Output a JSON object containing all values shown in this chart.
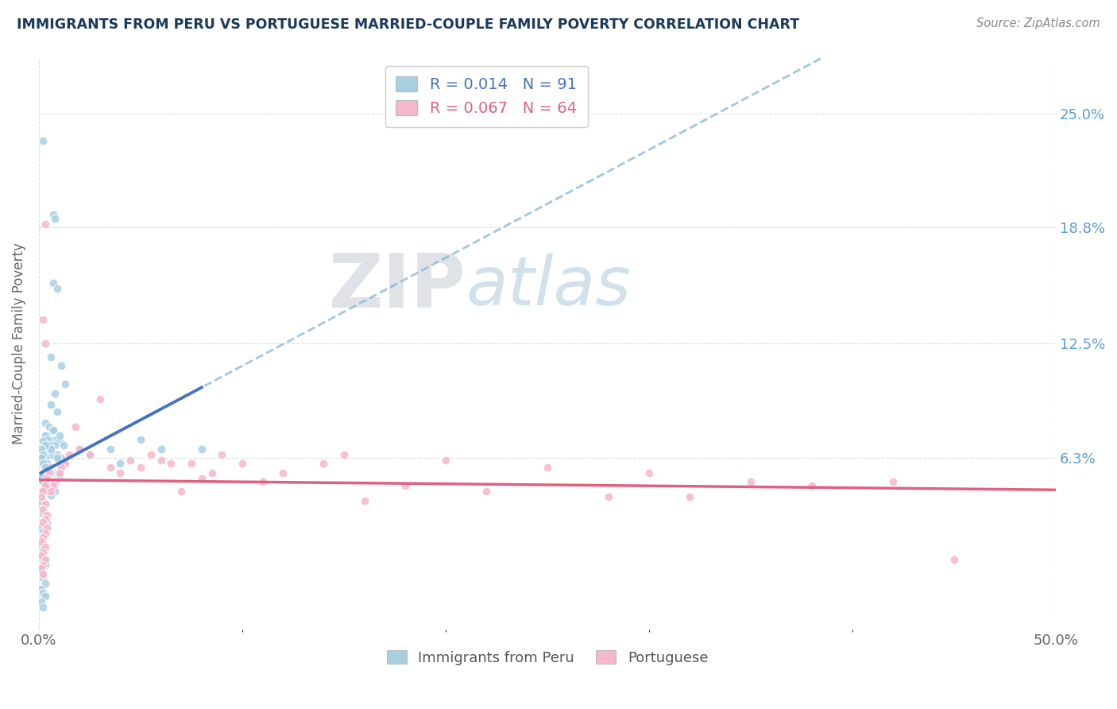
{
  "title": "IMMIGRANTS FROM PERU VS PORTUGUESE MARRIED-COUPLE FAMILY POVERTY CORRELATION CHART",
  "source_text": "Source: ZipAtlas.com",
  "ylabel": "Married-Couple Family Poverty",
  "ytick_labels": [
    "25.0%",
    "18.8%",
    "12.5%",
    "6.3%"
  ],
  "ytick_values": [
    0.25,
    0.188,
    0.125,
    0.063
  ],
  "xmin": 0.0,
  "xmax": 0.5,
  "ymin": -0.03,
  "ymax": 0.28,
  "series1_label": "Immigrants from Peru",
  "series2_label": "Portuguese",
  "series1_color": "#a8cfe0",
  "series2_color": "#f5b8cb",
  "series1_line_color": "#4472c4",
  "series2_line_color": "#e06080",
  "series2_dashed_color": "#7aaed6",
  "R1": 0.014,
  "N1": 91,
  "R2": 0.067,
  "N2": 64,
  "watermark_zip": "ZIP",
  "watermark_atlas": "atlas",
  "watermark_zip_color": "#c8d4dc",
  "watermark_atlas_color": "#a8c4d8",
  "background_color": "#ffffff",
  "grid_color": "#dddddd",
  "title_color": "#1a3a5c",
  "series1_scatter": [
    [
      0.002,
      0.235
    ],
    [
      0.007,
      0.195
    ],
    [
      0.008,
      0.193
    ],
    [
      0.007,
      0.158
    ],
    [
      0.009,
      0.155
    ],
    [
      0.006,
      0.118
    ],
    [
      0.011,
      0.113
    ],
    [
      0.013,
      0.103
    ],
    [
      0.008,
      0.098
    ],
    [
      0.006,
      0.092
    ],
    [
      0.009,
      0.088
    ],
    [
      0.003,
      0.082
    ],
    [
      0.005,
      0.08
    ],
    [
      0.007,
      0.078
    ],
    [
      0.004,
      0.075
    ],
    [
      0.008,
      0.073
    ],
    [
      0.01,
      0.072
    ],
    [
      0.012,
      0.07
    ],
    [
      0.006,
      0.068
    ],
    [
      0.009,
      0.065
    ],
    [
      0.011,
      0.063
    ],
    [
      0.007,
      0.078
    ],
    [
      0.01,
      0.075
    ],
    [
      0.005,
      0.073
    ],
    [
      0.008,
      0.07
    ],
    [
      0.003,
      0.068
    ],
    [
      0.006,
      0.065
    ],
    [
      0.009,
      0.063
    ],
    [
      0.012,
      0.06
    ],
    [
      0.004,
      0.058
    ],
    [
      0.007,
      0.055
    ],
    [
      0.01,
      0.053
    ],
    [
      0.002,
      0.05
    ],
    [
      0.005,
      0.048
    ],
    [
      0.008,
      0.045
    ],
    [
      0.003,
      0.075
    ],
    [
      0.004,
      0.073
    ],
    [
      0.005,
      0.07
    ],
    [
      0.006,
      0.068
    ],
    [
      0.002,
      0.065
    ],
    [
      0.003,
      0.063
    ],
    [
      0.004,
      0.06
    ],
    [
      0.005,
      0.058
    ],
    [
      0.006,
      0.055
    ],
    [
      0.002,
      0.053
    ],
    [
      0.003,
      0.05
    ],
    [
      0.004,
      0.048
    ],
    [
      0.005,
      0.045
    ],
    [
      0.006,
      0.043
    ],
    [
      0.002,
      0.072
    ],
    [
      0.003,
      0.07
    ],
    [
      0.001,
      0.068
    ],
    [
      0.002,
      0.065
    ],
    [
      0.001,
      0.063
    ],
    [
      0.002,
      0.06
    ],
    [
      0.003,
      0.058
    ],
    [
      0.004,
      0.055
    ],
    [
      0.001,
      0.053
    ],
    [
      0.002,
      0.05
    ],
    [
      0.003,
      0.048
    ],
    [
      0.001,
      0.045
    ],
    [
      0.002,
      0.04
    ],
    [
      0.001,
      0.038
    ],
    [
      0.001,
      0.035
    ],
    [
      0.002,
      0.033
    ],
    [
      0.003,
      0.03
    ],
    [
      0.004,
      0.028
    ],
    [
      0.001,
      0.025
    ],
    [
      0.002,
      0.023
    ],
    [
      0.001,
      0.02
    ],
    [
      0.002,
      0.018
    ],
    [
      0.001,
      0.015
    ],
    [
      0.002,
      0.013
    ],
    [
      0.001,
      0.01
    ],
    [
      0.002,
      0.008
    ],
    [
      0.003,
      0.005
    ],
    [
      0.001,
      0.003
    ],
    [
      0.001,
      0.0
    ],
    [
      0.002,
      -0.002
    ],
    [
      0.003,
      -0.005
    ],
    [
      0.001,
      -0.008
    ],
    [
      0.002,
      -0.01
    ],
    [
      0.003,
      -0.012
    ],
    [
      0.001,
      -0.015
    ],
    [
      0.002,
      -0.018
    ],
    [
      0.02,
      0.068
    ],
    [
      0.035,
      0.068
    ],
    [
      0.05,
      0.073
    ],
    [
      0.06,
      0.068
    ],
    [
      0.08,
      0.068
    ],
    [
      0.04,
      0.06
    ],
    [
      0.025,
      0.065
    ]
  ],
  "series2_scatter": [
    [
      0.003,
      0.19
    ],
    [
      0.002,
      0.138
    ],
    [
      0.003,
      0.125
    ],
    [
      0.45,
      0.008
    ],
    [
      0.42,
      0.05
    ],
    [
      0.38,
      0.048
    ],
    [
      0.32,
      0.042
    ],
    [
      0.35,
      0.05
    ],
    [
      0.3,
      0.055
    ],
    [
      0.28,
      0.042
    ],
    [
      0.25,
      0.058
    ],
    [
      0.22,
      0.045
    ],
    [
      0.2,
      0.062
    ],
    [
      0.18,
      0.048
    ],
    [
      0.16,
      0.04
    ],
    [
      0.15,
      0.065
    ],
    [
      0.14,
      0.06
    ],
    [
      0.12,
      0.055
    ],
    [
      0.11,
      0.05
    ],
    [
      0.1,
      0.06
    ],
    [
      0.09,
      0.065
    ],
    [
      0.085,
      0.055
    ],
    [
      0.08,
      0.052
    ],
    [
      0.075,
      0.06
    ],
    [
      0.07,
      0.045
    ],
    [
      0.065,
      0.06
    ],
    [
      0.06,
      0.062
    ],
    [
      0.055,
      0.065
    ],
    [
      0.05,
      0.058
    ],
    [
      0.045,
      0.062
    ],
    [
      0.04,
      0.055
    ],
    [
      0.035,
      0.058
    ],
    [
      0.03,
      0.095
    ],
    [
      0.025,
      0.065
    ],
    [
      0.02,
      0.068
    ],
    [
      0.018,
      0.08
    ],
    [
      0.015,
      0.065
    ],
    [
      0.013,
      0.06
    ],
    [
      0.011,
      0.058
    ],
    [
      0.01,
      0.055
    ],
    [
      0.008,
      0.05
    ],
    [
      0.007,
      0.048
    ],
    [
      0.006,
      0.045
    ],
    [
      0.005,
      0.055
    ],
    [
      0.004,
      0.052
    ],
    [
      0.003,
      0.048
    ],
    [
      0.002,
      0.045
    ],
    [
      0.001,
      0.042
    ],
    [
      0.003,
      0.038
    ],
    [
      0.002,
      0.035
    ],
    [
      0.004,
      0.032
    ],
    [
      0.003,
      0.03
    ],
    [
      0.002,
      0.028
    ],
    [
      0.004,
      0.025
    ],
    [
      0.003,
      0.022
    ],
    [
      0.002,
      0.02
    ],
    [
      0.001,
      0.018
    ],
    [
      0.003,
      0.015
    ],
    [
      0.002,
      0.012
    ],
    [
      0.001,
      0.01
    ],
    [
      0.003,
      0.008
    ],
    [
      0.002,
      0.005
    ],
    [
      0.001,
      0.003
    ],
    [
      0.002,
      0.0
    ]
  ]
}
